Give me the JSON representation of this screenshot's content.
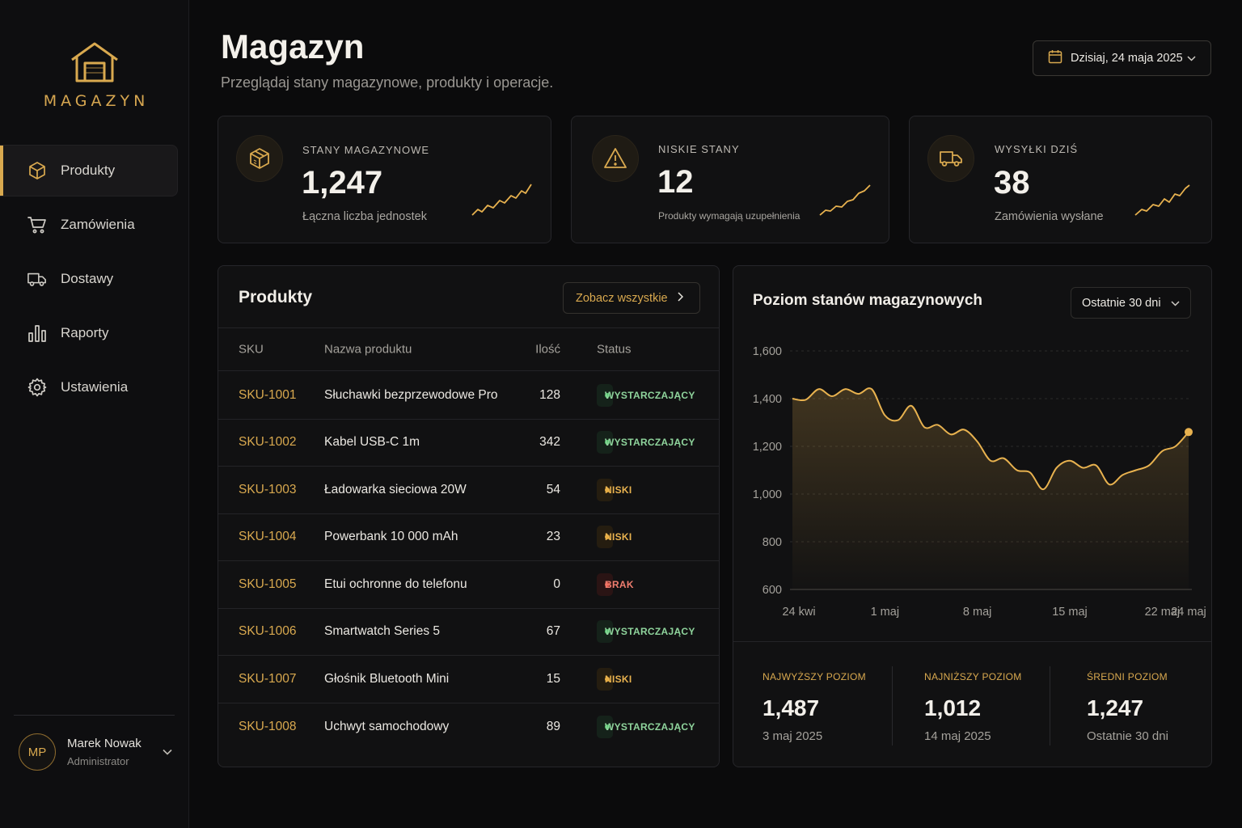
{
  "sidebar": {
    "logo_text": "MAGAZYN",
    "items": [
      {
        "label": "Produkty",
        "icon": "box-icon",
        "active": true
      },
      {
        "label": "Zamówienia",
        "icon": "cart-icon"
      },
      {
        "label": "Dostawy",
        "icon": "truck-icon"
      },
      {
        "label": "Raporty",
        "icon": "bar-chart-icon"
      },
      {
        "label": "Ustawienia",
        "icon": "gear-icon"
      }
    ],
    "user": {
      "initials": "MP",
      "name": "Marek Nowak",
      "role": "Administrator"
    }
  },
  "header": {
    "title": "Magazyn",
    "subtitle": "Przeglądaj stany magazynowe, produkty i operacje.",
    "date_label": "Dzisiaj, 24 maja 2025"
  },
  "stats": [
    {
      "label": "STANY MAGAZYNOWE",
      "value": "1,247",
      "desc": "Łączna liczba jednostek",
      "icon": "box-icon"
    },
    {
      "label": "NISKIE STANY",
      "value": "12",
      "desc": "Produkty wymagają uzupełnienia",
      "icon": "warning-icon"
    },
    {
      "label": "WYSYŁKI DZIŚ",
      "value": "38",
      "desc": "Zamówienia wysłane",
      "icon": "truck-icon"
    }
  ],
  "products": {
    "title": "Produkty",
    "see_all": "Zobacz wszystkie",
    "columns": {
      "sku": "SKU",
      "name": "Nazwa produktu",
      "qty": "Ilość",
      "status": "Status"
    },
    "rows": [
      {
        "sku": "SKU-1001",
        "name": "Słuchawki bezprzewodowe Pro",
        "qty": "128",
        "status": "WYSTARCZAJĄCY",
        "level": "ok"
      },
      {
        "sku": "SKU-1002",
        "name": "Kabel USB-C 1m",
        "qty": "342",
        "status": "WYSTARCZAJĄCY",
        "level": "ok"
      },
      {
        "sku": "SKU-1003",
        "name": "Ładowarka sieciowa 20W",
        "qty": "54",
        "status": "NISKI",
        "level": "low"
      },
      {
        "sku": "SKU-1004",
        "name": "Powerbank 10 000 mAh",
        "qty": "23",
        "status": "NISKI",
        "level": "low"
      },
      {
        "sku": "SKU-1005",
        "name": "Etui ochronne do telefonu",
        "qty": "0",
        "status": "BRAK",
        "level": "out"
      },
      {
        "sku": "SKU-1006",
        "name": "Smartwatch Series 5",
        "qty": "67",
        "status": "WYSTARCZAJĄCY",
        "level": "ok"
      },
      {
        "sku": "SKU-1007",
        "name": "Głośnik Bluetooth Mini",
        "qty": "15",
        "status": "NISKI",
        "level": "low"
      },
      {
        "sku": "SKU-1008",
        "name": "Uchwyt samochodowy",
        "qty": "89",
        "status": "WYSTARCZAJĄCY",
        "level": "ok"
      }
    ]
  },
  "inventory_chart": {
    "title": "Poziom stanów magazynowych",
    "range": "Ostatnie 30 dni",
    "summary": [
      {
        "label": "NAJWYŻSZY POZIOM",
        "value": "1,487",
        "sub": "3 maj 2025"
      },
      {
        "label": "NAJNIŻSZY POZIOM",
        "value": "1,012",
        "sub": "14 maj 2025"
      },
      {
        "label": "ŚREDNI POZIOM",
        "value": "1,247",
        "sub": "Ostatnie 30 dni"
      }
    ]
  },
  "chart_data": {
    "type": "area",
    "color": "#e8b24f",
    "y_ticks": [
      "1,600",
      "1,400",
      "1,200",
      "1,000",
      "800",
      "600"
    ],
    "ylim": [
      600,
      1600
    ],
    "x_tick_labels": [
      "24 kwi",
      "1 maj",
      "8 maj",
      "15 maj",
      "22 maj",
      "24 maj"
    ],
    "x_tick_days": [
      0,
      7,
      14,
      21,
      28,
      30
    ],
    "grid": true,
    "x_days": [
      0,
      1,
      2,
      3,
      4,
      5,
      6,
      7,
      8,
      9,
      10,
      11,
      12,
      13,
      14,
      15,
      16,
      17,
      18,
      19,
      20,
      21,
      22,
      23,
      24,
      25,
      26,
      27,
      28,
      29,
      30
    ],
    "values": [
      1400,
      1395,
      1440,
      1410,
      1440,
      1420,
      1440,
      1330,
      1310,
      1370,
      1280,
      1290,
      1250,
      1270,
      1220,
      1140,
      1150,
      1100,
      1090,
      1020,
      1110,
      1140,
      1110,
      1120,
      1040,
      1080,
      1100,
      1120,
      1180,
      1200,
      1260
    ]
  }
}
